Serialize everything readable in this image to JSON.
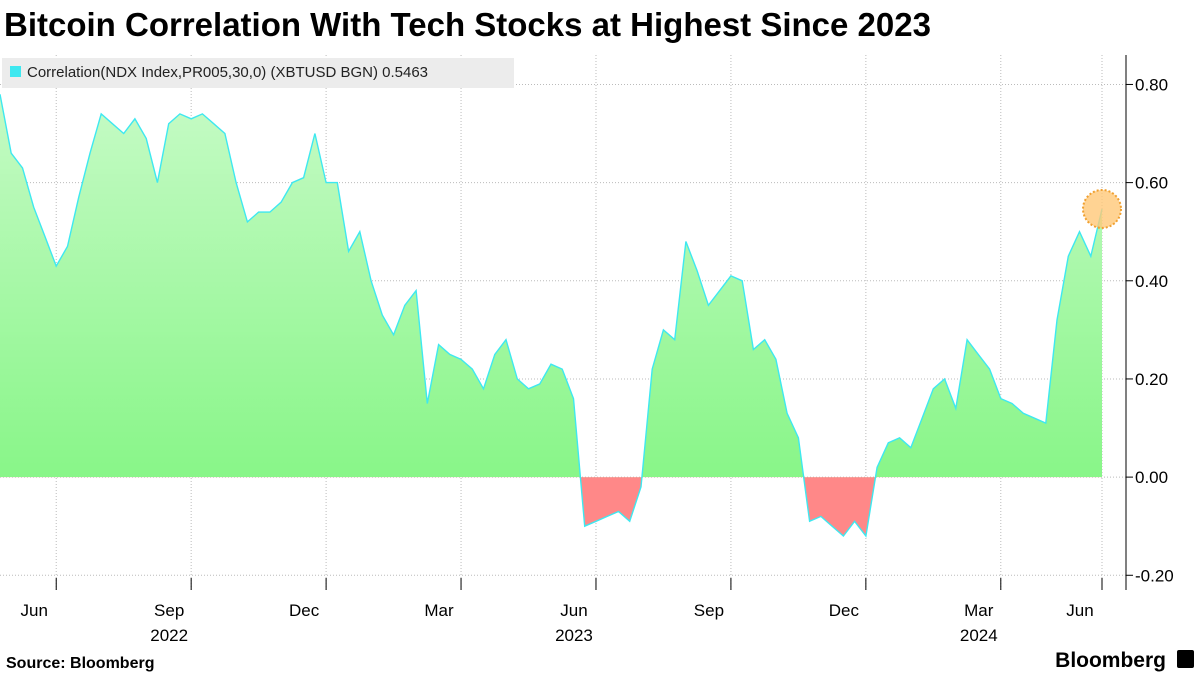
{
  "chart_data": {
    "type": "area",
    "title": "Bitcoin Correlation With Tech Stocks at Highest Since 2023",
    "source": "Source: Bloomberg",
    "brand": "Bloomberg",
    "categories": [
      null,
      null,
      null,
      null,
      null,
      "Jun",
      null,
      null,
      null,
      null,
      null,
      null,
      null,
      null,
      null,
      null,
      null,
      "Sep",
      null,
      null,
      null,
      null,
      null,
      null,
      null,
      null,
      null,
      null,
      null,
      "Dec",
      null,
      null,
      null,
      null,
      null,
      null,
      null,
      null,
      null,
      null,
      null,
      "Mar",
      null,
      null,
      null,
      null,
      null,
      null,
      null,
      null,
      null,
      null,
      null,
      "Jun",
      null,
      null,
      null,
      null,
      null,
      null,
      null,
      null,
      null,
      null,
      null,
      "Sep",
      null,
      null,
      null,
      null,
      null,
      null,
      null,
      null,
      null,
      null,
      null,
      "Dec",
      null,
      null,
      null,
      null,
      null,
      null,
      null,
      null,
      null,
      null,
      null,
      "Mar",
      null,
      null,
      null,
      null,
      null,
      null,
      null,
      null,
      "Jun"
    ],
    "category_years": [
      null,
      null,
      null,
      null,
      null,
      null,
      null,
      null,
      null,
      null,
      null,
      null,
      null,
      null,
      null,
      null,
      null,
      "2022",
      null,
      null,
      null,
      null,
      null,
      null,
      null,
      null,
      null,
      null,
      null,
      null,
      null,
      null,
      null,
      null,
      null,
      null,
      null,
      null,
      null,
      null,
      null,
      null,
      null,
      null,
      null,
      null,
      null,
      null,
      null,
      null,
      null,
      null,
      null,
      "2023",
      null,
      null,
      null,
      null,
      null,
      null,
      null,
      null,
      null,
      null,
      null,
      null,
      null,
      null,
      null,
      null,
      null,
      null,
      null,
      null,
      null,
      null,
      null,
      null,
      null,
      null,
      null,
      null,
      null,
      null,
      null,
      null,
      null,
      null,
      null,
      "2024",
      null,
      null,
      null,
      null,
      null,
      null,
      null,
      null,
      null
    ],
    "series": [
      {
        "name": "Correlation(NDX Index,PR005,30,0) (XBTUSD BGN) 0.5463",
        "color": "#3ee8f0",
        "values": [
          0.78,
          0.66,
          0.63,
          0.55,
          0.49,
          0.43,
          0.47,
          0.57,
          0.66,
          0.74,
          0.72,
          0.7,
          0.73,
          0.69,
          0.6,
          0.72,
          0.74,
          0.73,
          0.74,
          0.72,
          0.7,
          0.6,
          0.52,
          0.54,
          0.54,
          0.56,
          0.6,
          0.61,
          0.7,
          0.6,
          0.6,
          0.46,
          0.5,
          0.4,
          0.33,
          0.29,
          0.35,
          0.38,
          0.15,
          0.27,
          0.25,
          0.24,
          0.22,
          0.18,
          0.25,
          0.28,
          0.2,
          0.18,
          0.19,
          0.23,
          0.22,
          0.16,
          -0.1,
          -0.09,
          -0.08,
          -0.07,
          -0.09,
          -0.02,
          0.22,
          0.3,
          0.28,
          0.48,
          0.42,
          0.35,
          0.38,
          0.41,
          0.4,
          0.26,
          0.28,
          0.24,
          0.13,
          0.08,
          -0.09,
          -0.08,
          -0.1,
          -0.12,
          -0.09,
          -0.12,
          0.02,
          0.07,
          0.08,
          0.06,
          0.12,
          0.18,
          0.2,
          0.14,
          0.28,
          0.25,
          0.22,
          0.16,
          0.15,
          0.13,
          0.12,
          0.11,
          0.32,
          0.45,
          0.5,
          0.45,
          0.5463
        ]
      }
    ],
    "positive_color": "#7ff57f",
    "negative_color": "#ff8888",
    "ylim": [
      -0.23,
      0.86
    ],
    "yticks": [
      {
        "value": 0.8,
        "label": "0.80"
      },
      {
        "value": 0.6,
        "label": "0.60"
      },
      {
        "value": 0.4,
        "label": "0.40"
      },
      {
        "value": 0.2,
        "label": "0.20"
      },
      {
        "value": 0,
        "label": "0.00"
      },
      {
        "value": -0.2,
        "label": "-0.20"
      }
    ],
    "grid": true
  }
}
